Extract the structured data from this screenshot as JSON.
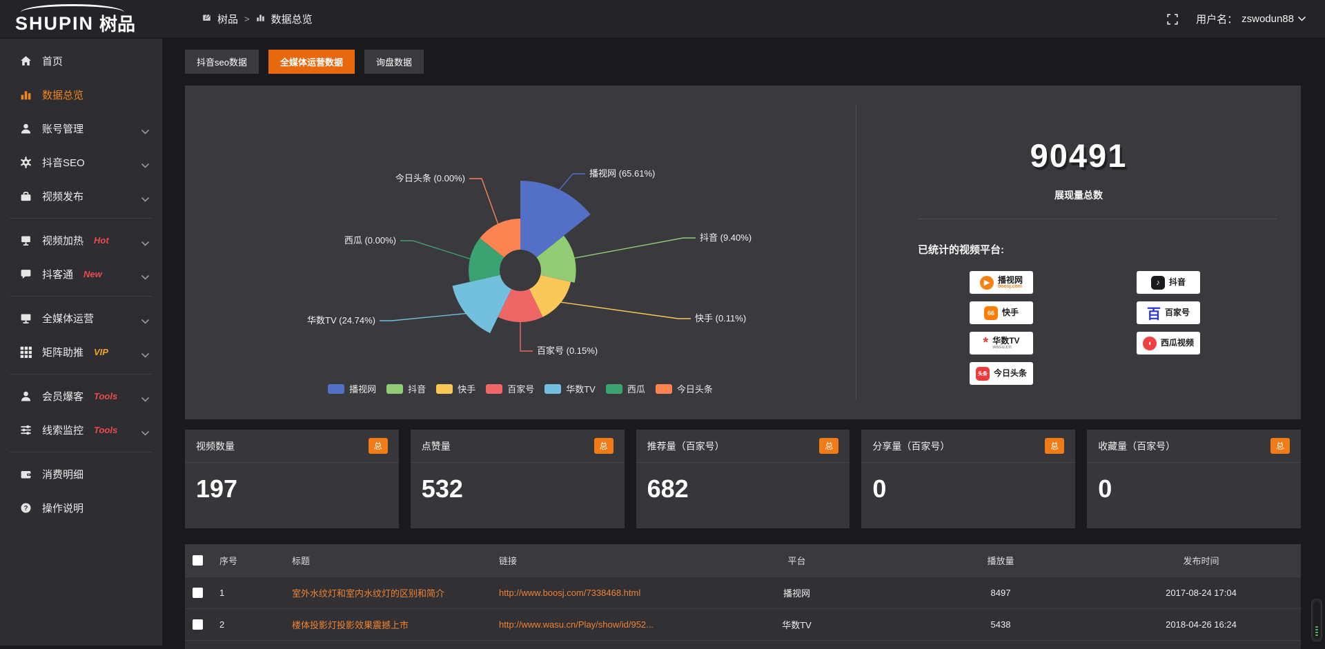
{
  "colors": {
    "accent_orange": "#e8690d",
    "badge_orange": "#f07b17",
    "sidebar_active_orange": "#f08519",
    "link_orange": "#ef8231",
    "hot_red": "#e84c4c",
    "vip_yellow": "#efa428",
    "chart_palette": [
      "#5470c6",
      "#91cc75",
      "#fac858",
      "#ee6666",
      "#73c0de",
      "#3ba272",
      "#fc8452"
    ]
  },
  "topbar": {
    "logo_main": "SHUPIN",
    "logo_suffix": "树品",
    "breadcrumb": {
      "root": "树品",
      "separator": ">",
      "current": "数据总览"
    },
    "user": {
      "label": "用户名：",
      "name": "zswodun88"
    }
  },
  "sidebar": {
    "items": [
      {
        "key": "home",
        "label": "首页",
        "icon": "home"
      },
      {
        "key": "data-overview",
        "label": "数据总览",
        "icon": "bar-chart",
        "active": true
      },
      {
        "key": "account-management",
        "label": "账号管理",
        "icon": "user",
        "expandable": true
      },
      {
        "key": "douyin-seo",
        "label": "抖音SEO",
        "icon": "gear",
        "expandable": true
      },
      {
        "key": "video-publish",
        "label": "视频发布",
        "icon": "briefcase",
        "expandable": true
      },
      {
        "divider": true
      },
      {
        "key": "video-heat",
        "label": "视频加热",
        "icon": "screen",
        "badge": "Hot",
        "badge_color": "#e84c4c",
        "expandable": true
      },
      {
        "key": "douketong",
        "label": "抖客通",
        "icon": "chat",
        "badge": "New",
        "badge_color": "#e84c4c",
        "expandable": true
      },
      {
        "divider": true
      },
      {
        "key": "media-operation",
        "label": "全媒体运营",
        "icon": "monitor",
        "expandable": true
      },
      {
        "key": "matrix-boost",
        "label": "矩阵助推",
        "icon": "grid",
        "badge": "VIP",
        "badge_color": "#efa428",
        "expandable": true
      },
      {
        "divider": true
      },
      {
        "key": "member-baoke",
        "label": "会员爆客",
        "icon": "user",
        "badge": "Tools",
        "badge_color": "#e84c4c",
        "expandable": true
      },
      {
        "key": "clue-monitor",
        "label": "线索监控",
        "icon": "sliders",
        "badge": "Tools",
        "badge_color": "#e84c4c",
        "expandable": true
      },
      {
        "divider": true
      },
      {
        "key": "consumption-detail",
        "label": "消费明细",
        "icon": "wallet"
      },
      {
        "key": "operation-guide",
        "label": "操作说明",
        "icon": "question"
      }
    ]
  },
  "tabs": [
    {
      "key": "douyin-seo-data",
      "label": "抖音seo数据",
      "active": false
    },
    {
      "key": "media-operation-data",
      "label": "全媒体运营数据",
      "active": true
    },
    {
      "key": "inquiry-data",
      "label": "询盘数据",
      "active": false
    }
  ],
  "chart_data": {
    "type": "pie",
    "subtype": "nightingale-rose",
    "title": "",
    "unit": "percent",
    "label_format": "{name} ({value}%)",
    "legend_position": "bottom",
    "items": [
      {
        "name": "播视网",
        "value": 65.61
      },
      {
        "name": "抖音",
        "value": 9.4
      },
      {
        "name": "快手",
        "value": 0.11
      },
      {
        "name": "百家号",
        "value": 0.15
      },
      {
        "name": "华数TV",
        "value": 24.74
      },
      {
        "name": "西瓜",
        "value": 0.0
      },
      {
        "name": "今日头条",
        "value": 0.0
      }
    ],
    "legend": [
      "播视网",
      "抖音",
      "快手",
      "百家号",
      "华数TV",
      "西瓜",
      "今日头条"
    ]
  },
  "summary": {
    "total_value": "90491",
    "total_label": "展现量总数",
    "platforms_label": "已统计的视频平台:",
    "logo_columns": [
      [
        {
          "key": "boosj",
          "name": "播视网",
          "sub": "boosj.com",
          "glyph": "▶",
          "glyph_bg": "#f78211",
          "sub_color": "#f78211",
          "shape": "circle"
        },
        {
          "key": "kuaishou",
          "name": "快手",
          "glyph": "66",
          "glyph_bg": "#ff7e00",
          "shape": "square"
        },
        {
          "key": "wasu",
          "name": "华数TV",
          "sub": "wasu.cn",
          "glyph": "*",
          "glyph_color": "#e03c31",
          "sub_color": "#999999",
          "shape": "bare"
        },
        {
          "key": "toutiao",
          "name": "今日头条",
          "glyph": "头条",
          "glyph_bg": "#ed3b3b",
          "shape": "square",
          "small": true
        }
      ],
      [
        {
          "key": "douyin",
          "name": "抖音",
          "glyph": "♪",
          "glyph_bg": "#1b1b1f",
          "shape": "square"
        },
        {
          "key": "baijiahao",
          "name": "百家号",
          "glyph": "百",
          "glyph_color": "#2932e1",
          "shape": "bare"
        },
        {
          "key": "xigua",
          "name": "西瓜视频",
          "glyph": "◖",
          "glyph_bg": "#f04142",
          "shape": "circle"
        }
      ]
    ]
  },
  "stat_cards": [
    {
      "title": "视频数量",
      "badge": "总",
      "value": "197"
    },
    {
      "title": "点赞量",
      "badge": "总",
      "value": "532"
    },
    {
      "title": "推荐量（百家号）",
      "badge": "总",
      "value": "682"
    },
    {
      "title": "分享量（百家号）",
      "badge": "总",
      "value": "0"
    },
    {
      "title": "收藏量（百家号）",
      "badge": "总",
      "value": "0"
    }
  ],
  "table": {
    "headers": [
      "序号",
      "标题",
      "链接",
      "平台",
      "播放量",
      "发布时间"
    ],
    "rows": [
      {
        "checked": false,
        "index": "1",
        "title": "室外水纹灯和室内水纹灯的区别和简介",
        "link": "http://www.boosj.com/7338468.html",
        "platform": "播视网",
        "plays": "8497",
        "publish_time": "2017-08-24 17:04"
      },
      {
        "checked": false,
        "index": "2",
        "title": "楼体投影灯投影效果震撼上市",
        "link": "http://www.wasu.cn/Play/show/id/952...",
        "platform": "华数TV",
        "plays": "5438",
        "publish_time": "2018-04-26 16:24"
      }
    ]
  }
}
